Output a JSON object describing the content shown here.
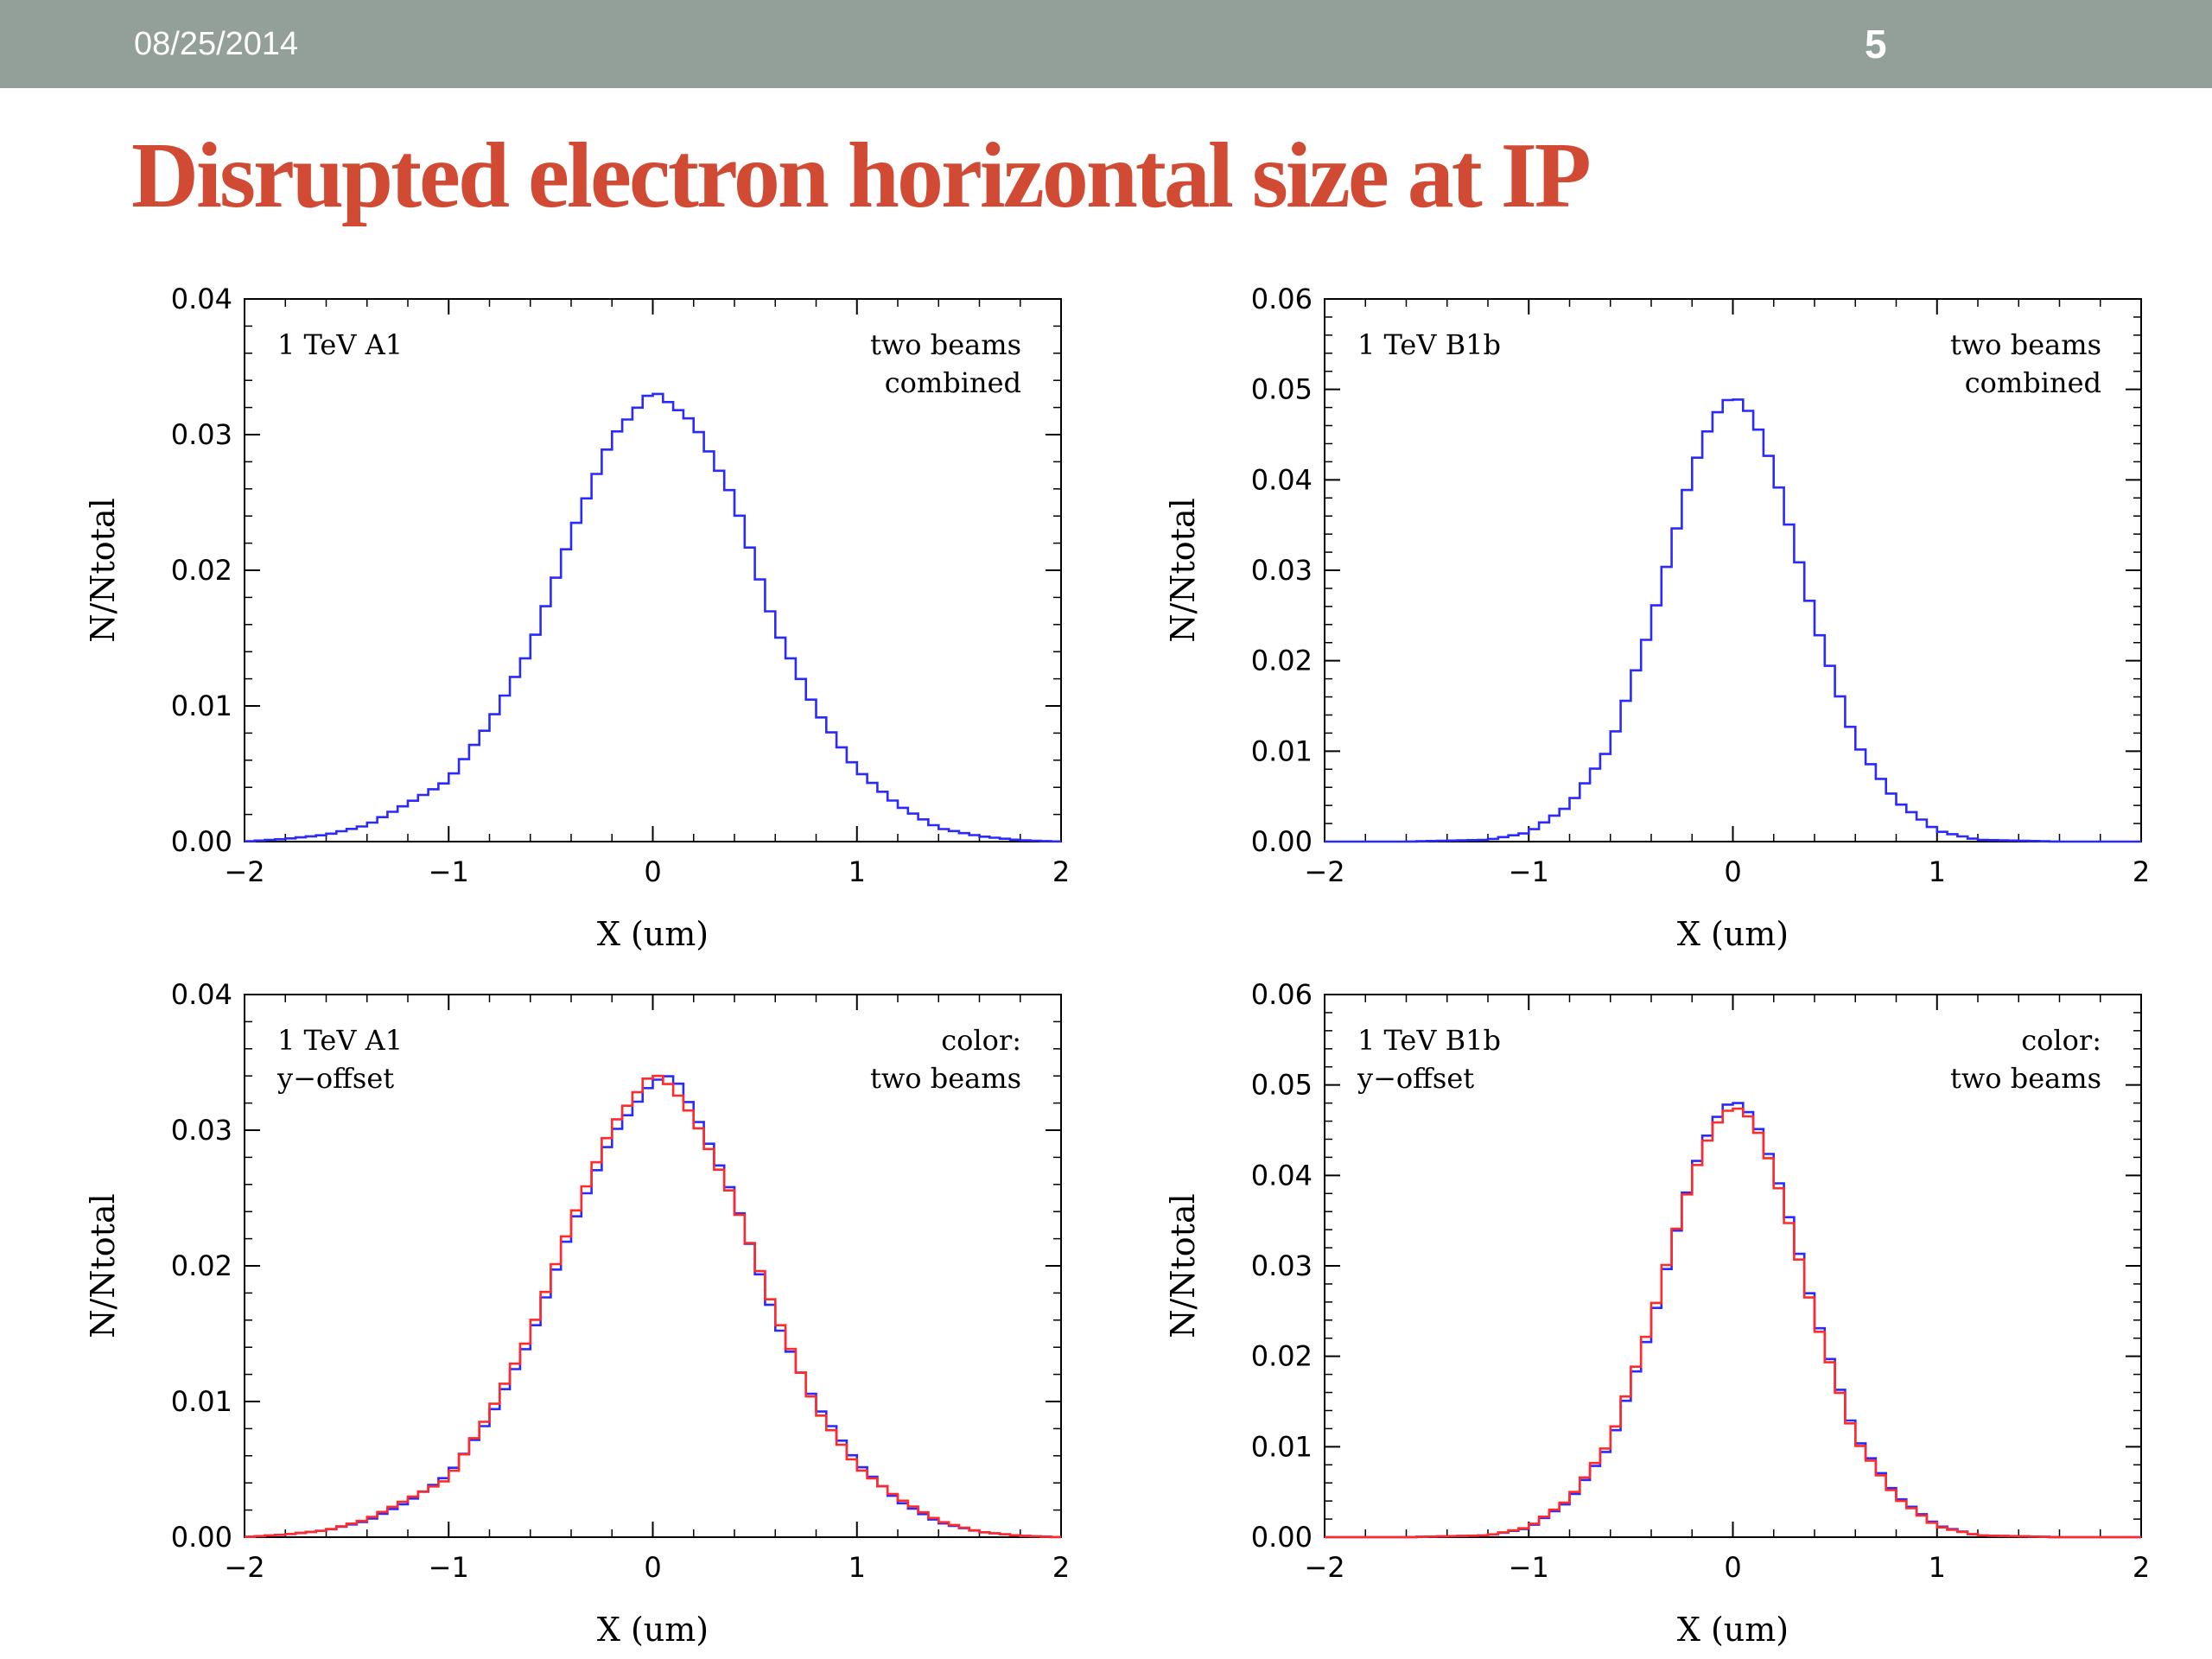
{
  "header": {
    "date": "08/25/2014",
    "page_number": "5"
  },
  "slide": {
    "title": "Disrupted electron horizontal size at IP"
  },
  "chart_data": [
    {
      "type": "line",
      "xlabel": "X (um)",
      "ylabel": "N/Ntotal",
      "xlim": [
        -2,
        2
      ],
      "ylim": [
        0,
        0.04
      ],
      "xticks": [
        "−2",
        "−1",
        "0",
        "1",
        "2"
      ],
      "yticks": [
        "0.00",
        "0.01",
        "0.02",
        "0.03",
        "0.04"
      ],
      "annotations": {
        "left": [
          "1 TeV A1"
        ],
        "right": [
          "two beams",
          "combined"
        ]
      },
      "series": [
        {
          "color": "#2a2aff",
          "x": [
            -2.0,
            -1.8,
            -1.6,
            -1.4,
            -1.2,
            -1.0,
            -0.8,
            -0.6,
            -0.4,
            -0.2,
            0.0,
            0.2,
            0.4,
            0.6,
            0.8,
            1.0,
            1.2,
            1.4,
            1.6,
            1.8,
            2.0
          ],
          "y": [
            0.0,
            0.0002,
            0.0005,
            0.0012,
            0.0028,
            0.0045,
            0.0087,
            0.0142,
            0.0226,
            0.0298,
            0.0333,
            0.0309,
            0.0252,
            0.0158,
            0.0097,
            0.0053,
            0.0027,
            0.001,
            0.0004,
            0.0001,
            0.0
          ]
        }
      ]
    },
    {
      "type": "line",
      "xlabel": "X (um)",
      "ylabel": "N/Ntotal",
      "xlim": [
        -2,
        2
      ],
      "ylim": [
        0,
        0.06
      ],
      "xticks": [
        "−2",
        "−1",
        "0",
        "1",
        "2"
      ],
      "yticks": [
        "0.00",
        "0.01",
        "0.02",
        "0.03",
        "0.04",
        "0.05",
        "0.06"
      ],
      "annotations": {
        "left": [
          "1 TeV B1b"
        ],
        "right": [
          "two beams",
          "combined"
        ]
      },
      "series": [
        {
          "color": "#2a2aff",
          "x": [
            -2.0,
            -1.6,
            -1.2,
            -1.0,
            -0.8,
            -0.6,
            -0.4,
            -0.3,
            -0.2,
            -0.1,
            0.0,
            0.1,
            0.2,
            0.3,
            0.4,
            0.6,
            0.8,
            1.0,
            1.2,
            1.6,
            2.0
          ],
          "y": [
            0.0,
            0.0,
            0.0002,
            0.001,
            0.004,
            0.0105,
            0.024,
            0.0325,
            0.041,
            0.0468,
            0.0495,
            0.047,
            0.0412,
            0.033,
            0.0245,
            0.011,
            0.0045,
            0.0012,
            0.0002,
            0.0,
            0.0
          ]
        }
      ]
    },
    {
      "type": "line",
      "xlabel": "X (um)",
      "ylabel": "N/Ntotal",
      "xlim": [
        -2,
        2
      ],
      "ylim": [
        0,
        0.04
      ],
      "xticks": [
        "−2",
        "−1",
        "0",
        "1",
        "2"
      ],
      "yticks": [
        "0.00",
        "0.01",
        "0.02",
        "0.03",
        "0.04"
      ],
      "annotations": {
        "left": [
          "1 TeV A1",
          "y−offset"
        ],
        "right": [
          "color:",
          "two beams"
        ]
      },
      "series": [
        {
          "color": "#2a2aff",
          "x": [
            -2.0,
            -1.8,
            -1.6,
            -1.4,
            -1.2,
            -1.0,
            -0.8,
            -0.6,
            -0.4,
            -0.2,
            0.0,
            0.1,
            0.2,
            0.4,
            0.6,
            0.8,
            1.0,
            1.2,
            1.4,
            1.6,
            1.8,
            2.0
          ],
          "y": [
            0.0,
            0.0002,
            0.0005,
            0.0012,
            0.0026,
            0.0046,
            0.0087,
            0.0146,
            0.0228,
            0.0296,
            0.0336,
            0.0341,
            0.0314,
            0.025,
            0.016,
            0.0098,
            0.0055,
            0.0027,
            0.0011,
            0.0004,
            0.0001,
            0.0
          ]
        },
        {
          "color": "#ff2a2a",
          "x": [
            -2.0,
            -1.8,
            -1.6,
            -1.4,
            -1.2,
            -1.0,
            -0.8,
            -0.6,
            -0.4,
            -0.2,
            0.0,
            0.1,
            0.2,
            0.4,
            0.6,
            0.8,
            1.0,
            1.2,
            1.4,
            1.6,
            1.8,
            2.0
          ],
          "y": [
            0.0,
            0.0002,
            0.0005,
            0.0013,
            0.0028,
            0.0043,
            0.0091,
            0.015,
            0.0232,
            0.0303,
            0.0343,
            0.0331,
            0.0309,
            0.0248,
            0.0165,
            0.0095,
            0.0052,
            0.0029,
            0.0012,
            0.0004,
            0.0001,
            0.0
          ]
        }
      ]
    },
    {
      "type": "line",
      "xlabel": "X (um)",
      "ylabel": "N/Ntotal",
      "xlim": [
        -2,
        2
      ],
      "ylim": [
        0,
        0.06
      ],
      "xticks": [
        "−2",
        "−1",
        "0",
        "1",
        "2"
      ],
      "yticks": [
        "0.00",
        "0.01",
        "0.02",
        "0.03",
        "0.04",
        "0.05",
        "0.06"
      ],
      "annotations": {
        "left": [
          "1 TeV B1b",
          "y−offset"
        ],
        "right": [
          "color:",
          "two beams"
        ]
      },
      "series": [
        {
          "color": "#2a2aff",
          "x": [
            -2.0,
            -1.6,
            -1.2,
            -1.0,
            -0.8,
            -0.6,
            -0.4,
            -0.3,
            -0.2,
            -0.1,
            0.0,
            0.1,
            0.2,
            0.3,
            0.4,
            0.6,
            0.8,
            1.0,
            1.2,
            1.6,
            2.0
          ],
          "y": [
            0.0,
            0.0,
            0.0002,
            0.001,
            0.004,
            0.0102,
            0.0232,
            0.0318,
            0.0402,
            0.0458,
            0.0485,
            0.0465,
            0.041,
            0.0335,
            0.0248,
            0.0112,
            0.0046,
            0.0013,
            0.0002,
            0.0,
            0.0
          ]
        },
        {
          "color": "#ff2a2a",
          "x": [
            -2.0,
            -1.6,
            -1.2,
            -1.0,
            -0.8,
            -0.6,
            -0.4,
            -0.3,
            -0.2,
            -0.1,
            0.0,
            0.1,
            0.2,
            0.3,
            0.4,
            0.6,
            0.8,
            1.0,
            1.2,
            1.6,
            2.0
          ],
          "y": [
            0.0,
            0.0,
            0.0002,
            0.0011,
            0.0042,
            0.0106,
            0.0238,
            0.0322,
            0.0398,
            0.0452,
            0.0478,
            0.0461,
            0.0405,
            0.0328,
            0.0244,
            0.0109,
            0.0044,
            0.0012,
            0.0002,
            0.0,
            0.0
          ]
        }
      ]
    }
  ]
}
